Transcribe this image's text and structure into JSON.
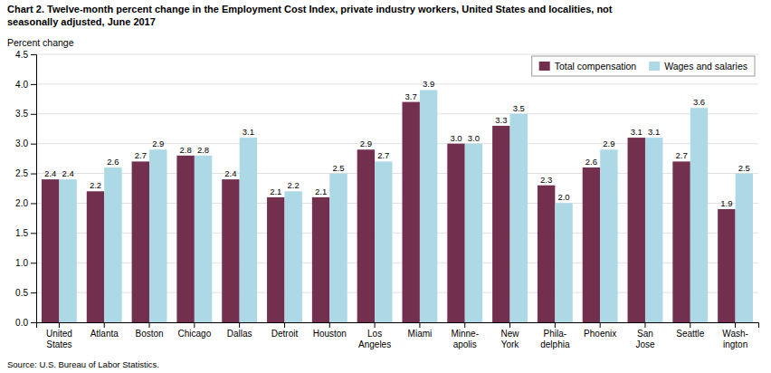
{
  "chart_data": {
    "type": "bar",
    "title": "Chart 2. Twelve-month percent change in the Employment Cost Index, private industry workers, United States and localities, not\nseasonally adjusted, June 2017",
    "ylabel": "Percent change",
    "annotations": [
      "Source: U.S. Bureau of Labor Statistics."
    ],
    "categories": [
      "United\nStates",
      "Atlanta",
      "Boston",
      "Chicago",
      "Dallas",
      "Detroit",
      "Houston",
      "Los\nAngeles",
      "Miami",
      "Minne-\napolis",
      "New\nYork",
      "Phila-\ndelphia",
      "Phoenix",
      "San\nJose",
      "Seattle",
      "Wash-\nington"
    ],
    "series": [
      {
        "name": "Total compensation",
        "color": "#722F4E",
        "values": [
          2.4,
          2.2,
          2.7,
          2.8,
          2.4,
          2.1,
          2.1,
          2.9,
          3.7,
          3.0,
          3.3,
          2.3,
          2.6,
          3.1,
          2.7,
          1.9
        ],
        "value_labels": [
          "2.4",
          "2.2",
          "2.7",
          "2.8",
          "2.4",
          "2.1",
          "2.1",
          "2.9",
          "3.7",
          "3.0",
          "3.3",
          "2.3",
          "2.6",
          "3.1",
          "2.7",
          "1.9"
        ]
      },
      {
        "name": "Wages and salaries",
        "color": "#ADD8E6",
        "values": [
          2.4,
          2.6,
          2.9,
          2.8,
          3.1,
          2.2,
          2.5,
          2.7,
          3.9,
          3.0,
          3.5,
          2.0,
          2.9,
          3.1,
          3.6,
          2.5
        ],
        "value_labels": [
          "2.4",
          "2.6",
          "2.9",
          "2.8",
          "3.1",
          "2.2",
          "2.5",
          "2.7",
          "3.9",
          "3.0",
          "3.5",
          "2.0",
          "2.9",
          "3.1",
          "3.6",
          "2.5"
        ]
      }
    ],
    "ylim": [
      0,
      4.5
    ],
    "yticks": [
      {
        "value": 0.0,
        "label": "0.0"
      },
      0.5,
      {
        "value": 1.0,
        "label": "1.0"
      },
      1.5,
      {
        "value": 2.0,
        "label": "2.0"
      },
      2.5,
      {
        "value": 3.0,
        "label": "3.0"
      },
      3.5,
      {
        "value": 4.0,
        "label": "4.0"
      },
      4.5
    ],
    "grid": true,
    "legend": "upper right",
    "data_labels": true
  }
}
